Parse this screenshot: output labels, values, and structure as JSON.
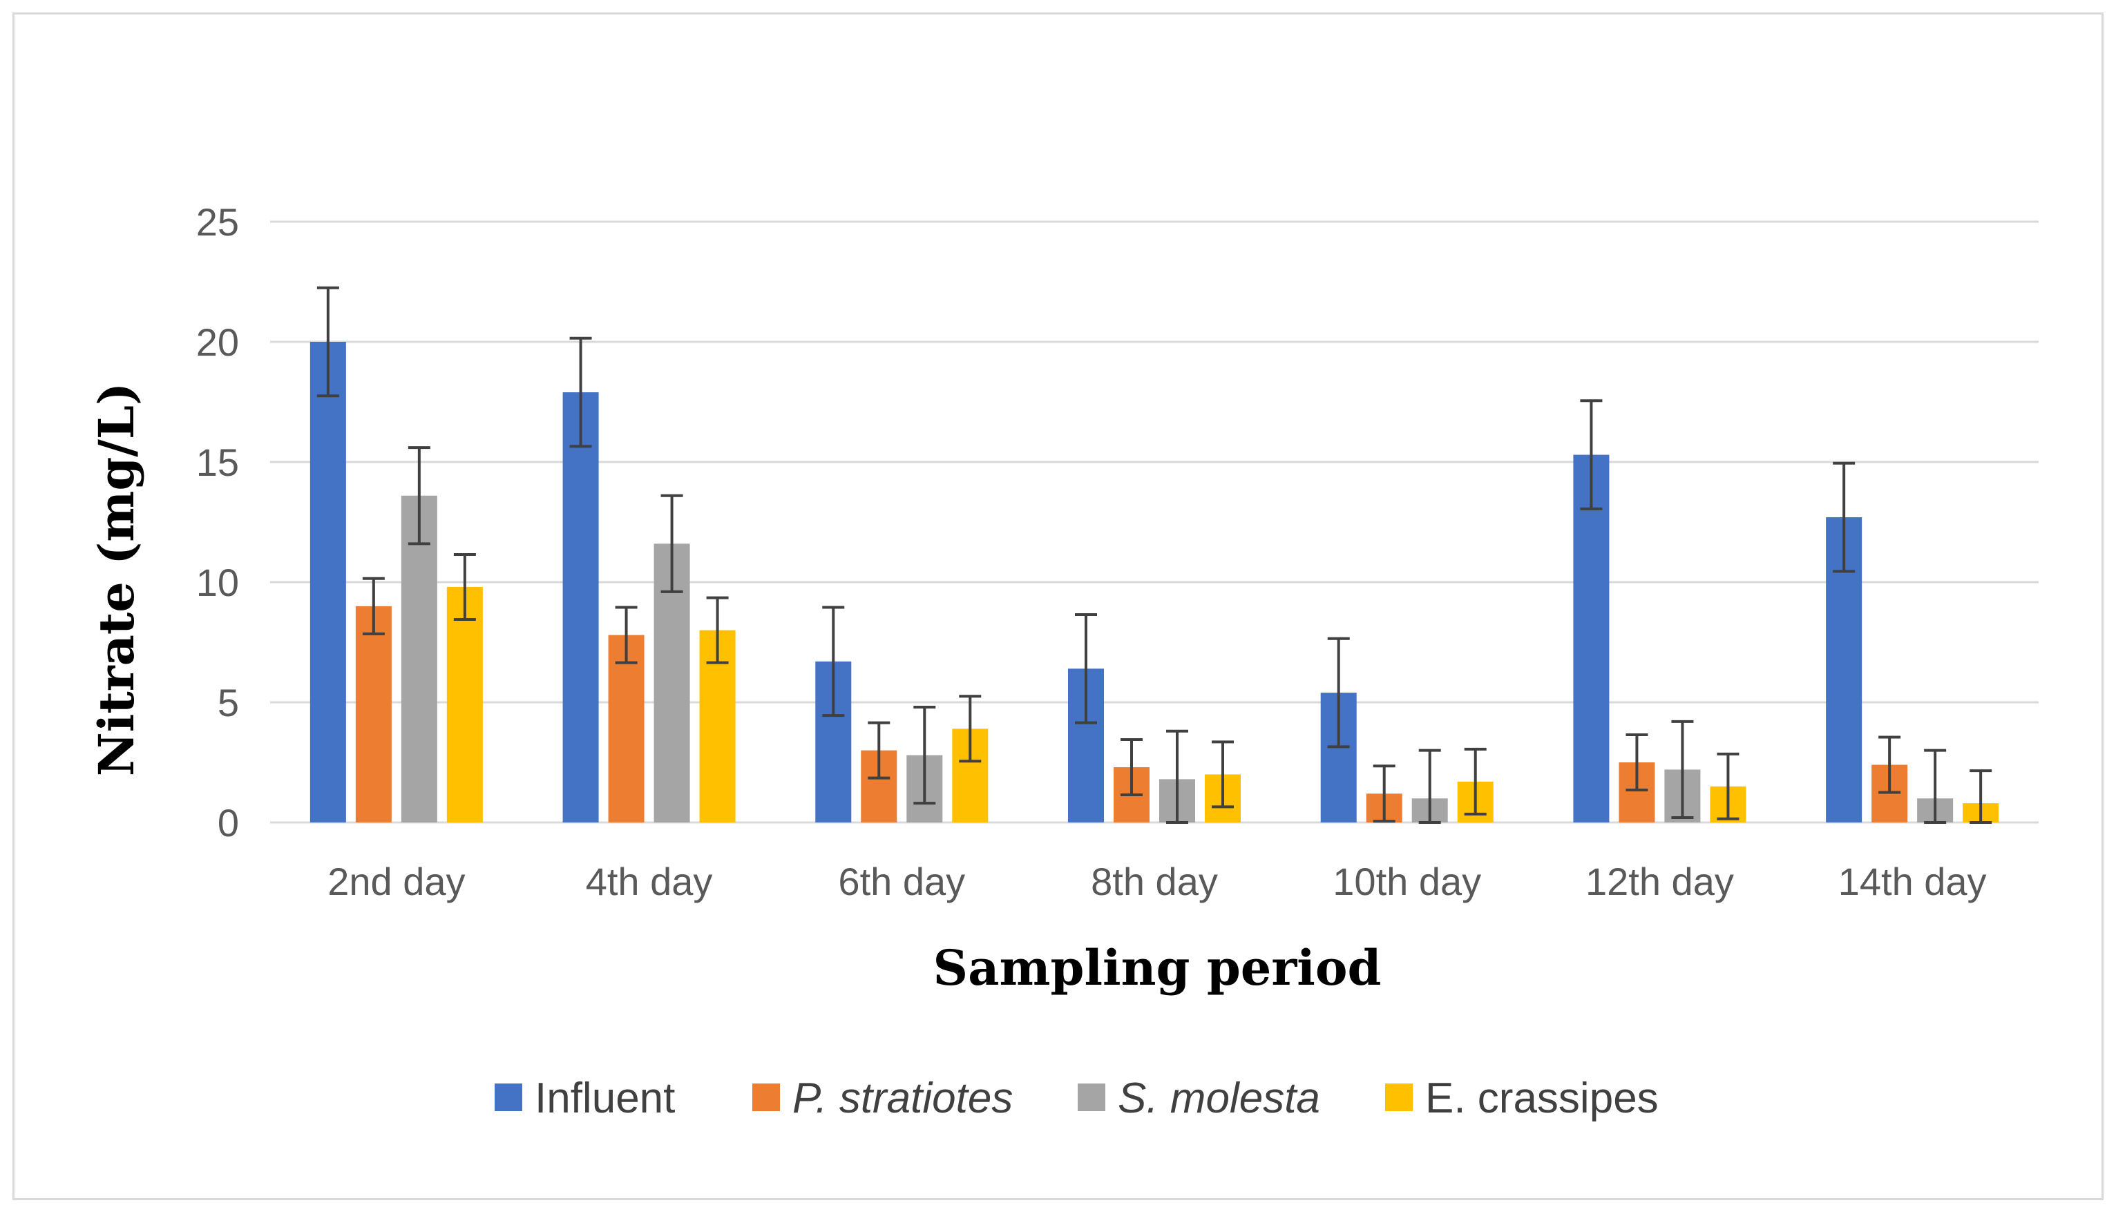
{
  "chart_data": {
    "type": "bar",
    "title": "",
    "xlabel": "Sampling period",
    "ylabel": "Nitrate (mg/L)",
    "ylim": [
      0,
      25
    ],
    "yticks": [
      "0",
      "5",
      "10",
      "15",
      "20",
      "25"
    ],
    "grid": true,
    "legend_position": "bottom",
    "categories": [
      "2nd day",
      "4th day",
      "6th day",
      "8th day",
      "10th day",
      "12th day",
      "14th day"
    ],
    "series": [
      {
        "name": "Influent",
        "italic": false,
        "color": "#4472c4",
        "values": [
          20.0,
          17.9,
          6.7,
          6.4,
          5.4,
          15.3,
          12.7
        ],
        "errors": [
          2.25,
          2.25,
          2.25,
          2.25,
          2.25,
          2.25,
          2.25
        ]
      },
      {
        "name": "P. stratiotes",
        "italic": true,
        "color": "#ed7d31",
        "values": [
          9.0,
          7.8,
          3.0,
          2.3,
          1.2,
          2.5,
          2.4
        ],
        "errors": [
          1.15,
          1.15,
          1.15,
          1.15,
          1.15,
          1.15,
          1.15
        ]
      },
      {
        "name": "S. molesta",
        "italic": true,
        "color": "#a5a5a5",
        "values": [
          13.6,
          11.6,
          2.8,
          1.8,
          1.0,
          2.2,
          1.0
        ],
        "errors": [
          2.0,
          2.0,
          2.0,
          2.0,
          2.0,
          2.0,
          2.0
        ]
      },
      {
        "name": "E. crassipes",
        "italic": false,
        "color": "#ffc000",
        "values": [
          9.8,
          8.0,
          3.9,
          2.0,
          1.7,
          1.5,
          0.8
        ],
        "errors": [
          1.35,
          1.35,
          1.35,
          1.35,
          1.35,
          1.35,
          1.35
        ]
      }
    ]
  },
  "colors": {
    "gridline": "#d9d9d9",
    "error_bar": "#404040",
    "axis_text": "#595959"
  }
}
